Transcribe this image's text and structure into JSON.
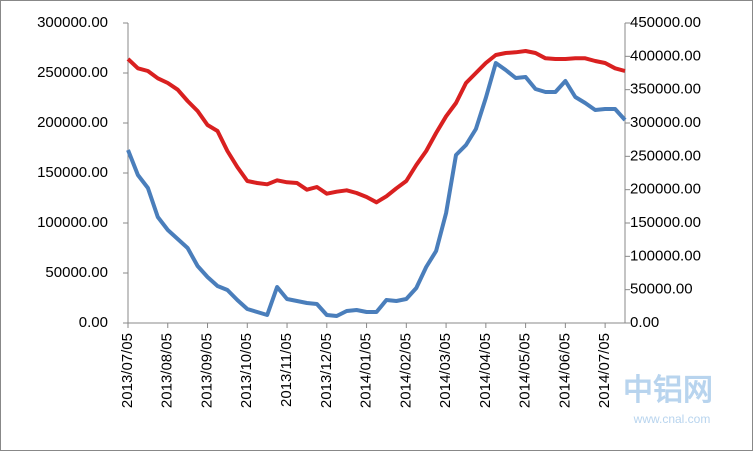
{
  "chart_data": {
    "type": "line",
    "categories": [
      "2013/07/05",
      null,
      null,
      null,
      "2013/08/05",
      null,
      null,
      null,
      "2013/09/05",
      null,
      null,
      null,
      "2013/10/05",
      null,
      null,
      null,
      "2013/11/05",
      null,
      null,
      null,
      "2013/12/05",
      null,
      null,
      null,
      "2014/01/05",
      null,
      null,
      null,
      "2014/02/05",
      null,
      null,
      null,
      "2014/03/05",
      null,
      null,
      null,
      "2014/04/05",
      null,
      null,
      null,
      "2014/05/05",
      null,
      null,
      null,
      "2014/06/05",
      null,
      null,
      null,
      "2014/07/05",
      null,
      null
    ],
    "series": [
      {
        "color": "#4a7ebb",
        "values": [
          173000,
          148000,
          135000,
          106000,
          93000,
          84000,
          75000,
          57000,
          46000,
          37000,
          33000,
          23000,
          14000,
          11000,
          8000,
          36000,
          24000,
          22000,
          20000,
          19000,
          8000,
          7000,
          12000,
          13000,
          11000,
          11000,
          23000,
          22000,
          24000,
          35000,
          56000,
          72000,
          110000,
          168000,
          178000,
          194000,
          225000,
          260000,
          253000,
          245000,
          246000,
          234000,
          231000,
          231000,
          242000,
          226000,
          220000,
          213000,
          214000,
          214000,
          203000
        ]
      },
      {
        "color": "#d92020",
        "axis": "y2",
        "values": [
          396000,
          382000,
          378000,
          367000,
          360000,
          350000,
          333000,
          318000,
          297000,
          288000,
          258000,
          234000,
          213000,
          210000,
          208000,
          214000,
          211000,
          210000,
          200000,
          204000,
          194000,
          197000,
          199000,
          195000,
          189000,
          181000,
          190000,
          202000,
          213000,
          237000,
          258000,
          285000,
          310000,
          330000,
          360000,
          375000,
          390000,
          402000,
          405000,
          406000,
          408000,
          405000,
          397000,
          396000,
          396000,
          397000,
          397000,
          393000,
          390000,
          382000,
          378000
        ]
      }
    ],
    "ylim": [
      0,
      300000
    ],
    "yticks": [
      {
        "value": 0,
        "label": "0.00"
      },
      {
        "value": 50000,
        "label": "50000.00"
      },
      {
        "value": 100000,
        "label": "100000.00"
      },
      {
        "value": 150000,
        "label": "150000.00"
      },
      {
        "value": 200000,
        "label": "200000.00"
      },
      {
        "value": 250000,
        "label": "250000.00"
      },
      {
        "value": 300000,
        "label": "300000.00"
      }
    ],
    "y2lim": [
      0,
      450000
    ],
    "y2ticks": [
      {
        "value": 0,
        "label": "0.00"
      },
      {
        "value": 50000,
        "label": "50000.00"
      },
      {
        "value": 100000,
        "label": "100000.00"
      },
      {
        "value": 150000,
        "label": "150000.00"
      },
      {
        "value": 200000,
        "label": "200000.00"
      },
      {
        "value": 250000,
        "label": "250000.00"
      },
      {
        "value": 300000,
        "label": "300000.00"
      },
      {
        "value": 350000,
        "label": "350000.00"
      },
      {
        "value": 400000,
        "label": "400000.00"
      },
      {
        "value": 450000,
        "label": "450000.00"
      }
    ],
    "watermark": {
      "logo": "中铝网",
      "url": "www.cnal.com"
    }
  }
}
